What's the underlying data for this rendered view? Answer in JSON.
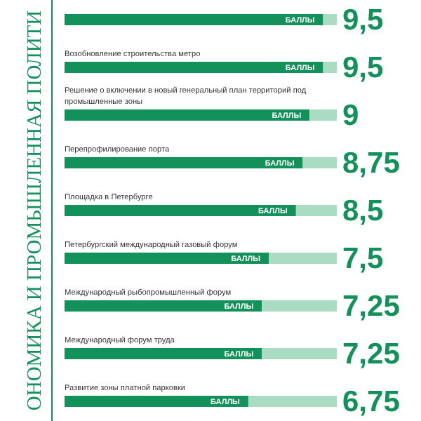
{
  "chart_data": {
    "type": "bar",
    "orientation": "horizontal",
    "stacked": true,
    "xlim": [
      0,
      10
    ],
    "tick_labels": false,
    "title": "ОНОМИКА И ПРОМЫШЛЕННАЯ ПОЛИТИ",
    "categories": [
      null,
      "Возобновление строительства метро",
      "Решение о включении в новый генеральный план территорий под промышленные зоны",
      "Перепрофилирование порта",
      "Площадка в Петербурге",
      "Петербургский международный газовый форум",
      "Международный рыбопромышленный форум",
      "Международный форум труда",
      "Развитие зоны платной парковки"
    ],
    "series": [
      {
        "color": "#12915a",
        "values": [
          9.5,
          9.5,
          9,
          8.75,
          8.5,
          7.5,
          7.25,
          7.25,
          6.75
        ],
        "value_labels": [
          "9,5",
          "9,5",
          "9",
          "8,75",
          "8,5",
          "7,5",
          "7,25",
          "7,25",
          "6,75"
        ]
      },
      {
        "color": "#a9dcc2",
        "values": [
          0.5,
          0.5,
          1,
          1.25,
          1.5,
          2.5,
          2.75,
          2.75,
          3.25
        ]
      }
    ],
    "annotations": [
      {
        "text": "БАЛЛЫ"
      },
      {
        "text": "БАЛЛЫ"
      },
      {
        "text": "БАЛЛЫ"
      },
      {
        "text": "БАЛЛЫ"
      },
      {
        "text": "БАЛЛЫ"
      },
      {
        "text": "БАЛЛЫ"
      },
      {
        "text": "БАЛЛЫ"
      },
      {
        "text": "БАЛЛЫ"
      },
      {
        "text": "БАЛЛЫ"
      }
    ]
  }
}
